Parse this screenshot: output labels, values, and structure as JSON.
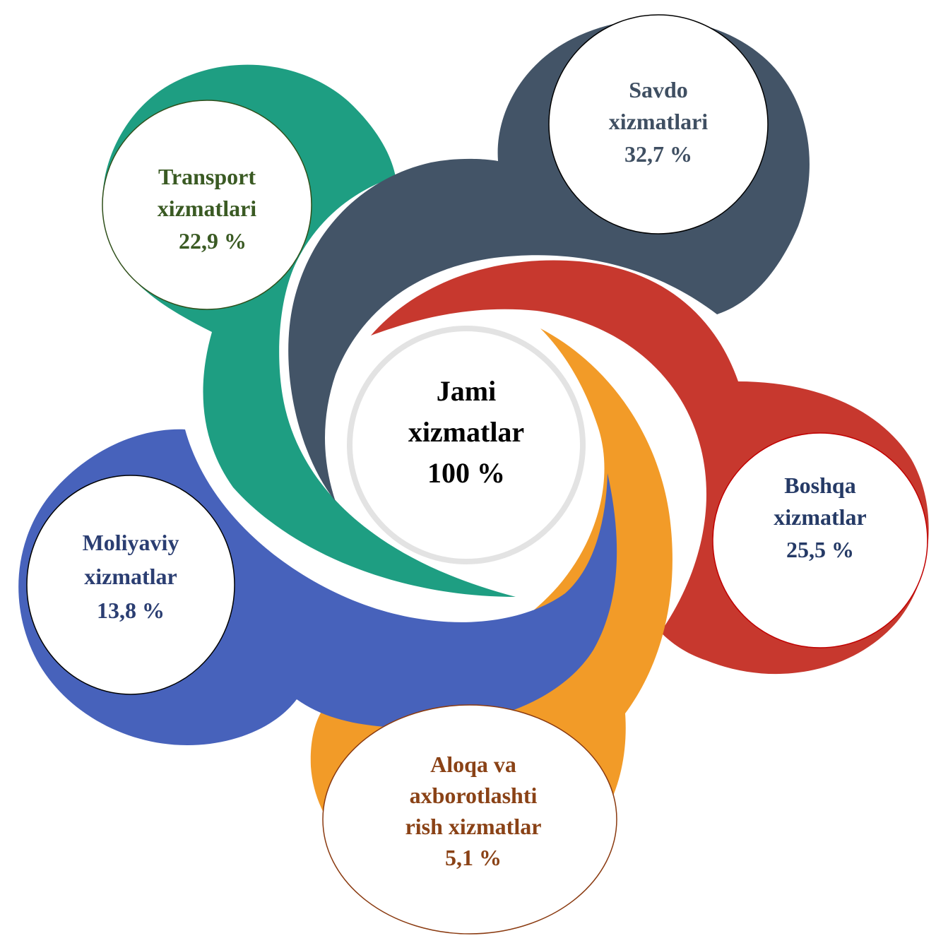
{
  "center": {
    "lines": [
      "Jami",
      "xizmatlar",
      "100 %"
    ],
    "color": "#000000"
  },
  "segments": [
    {
      "id": "transport",
      "lines": [
        "Transport",
        "xizmatlari",
        "22,9 %"
      ],
      "label": "Transport xizmatlari",
      "value": 22.9,
      "color": "#1e9e82",
      "text_color": "#3a5a23"
    },
    {
      "id": "savdo",
      "lines": [
        "Savdo",
        "xizmatlari",
        "32,7 %"
      ],
      "label": "Savdo xizmatlari",
      "value": 32.7,
      "color": "#435467",
      "text_color": "#3f4f62"
    },
    {
      "id": "boshqa",
      "lines": [
        "Boshqa",
        "xizmatlar",
        "25,5 %"
      ],
      "label": "Boshqa xizmatlar",
      "value": 25.5,
      "color": "#c7382e",
      "text_color": "#253a66"
    },
    {
      "id": "aloqa",
      "lines": [
        "Aloqa va",
        "axborotlashti",
        "rish xizmatlar",
        "5,1 %"
      ],
      "label": "Aloqa va axborotlashtirish xizmatlar",
      "value": 5.1,
      "color": "#f29b28",
      "text_color": "#8a4216"
    },
    {
      "id": "moliyaviy",
      "lines": [
        "Moliyaviy",
        "xizmatlar",
        "13,8 %"
      ],
      "label": "Moliyaviy xizmatlar",
      "value": 13.8,
      "color": "#4762bb",
      "text_color": "#2b3e72"
    }
  ]
}
